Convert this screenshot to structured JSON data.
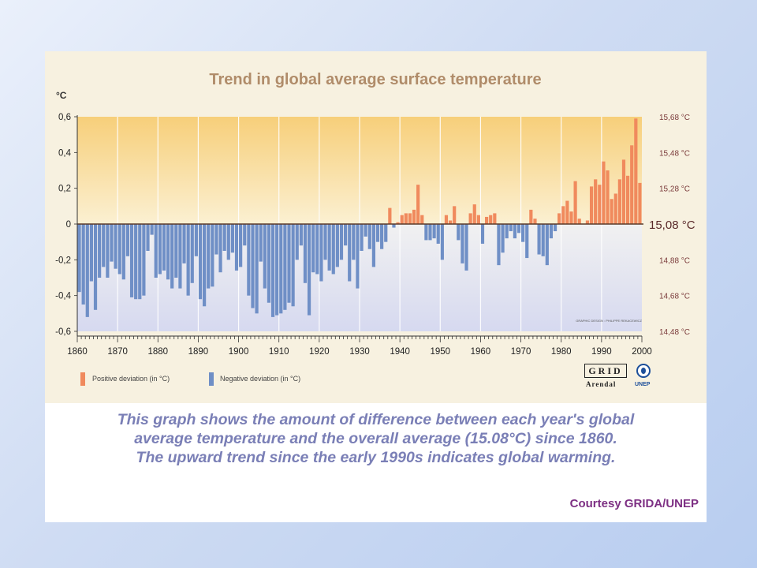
{
  "chart_data": {
    "type": "bar",
    "title": "Trend in global average surface temperature",
    "ylabel": "°C",
    "ylim": [
      -0.6,
      0.6
    ],
    "xlim": [
      1860,
      2000
    ],
    "y_ticks": [
      "0,6",
      "0,4",
      "0,2",
      "0",
      "-0,2",
      "-0,4",
      "-0,6"
    ],
    "y_tick_values": [
      0.6,
      0.4,
      0.2,
      0,
      -0.2,
      -0.4,
      -0.6
    ],
    "right_ticks": [
      "15,68 °C",
      "15,48 °C",
      "15,28 °C",
      "15,08 °C",
      "14,88 °C",
      "14,68 °C",
      "14,48 °C"
    ],
    "x_ticks": [
      "1860",
      "1870",
      "1880",
      "1890",
      "1900",
      "1910",
      "1920",
      "1930",
      "1940",
      "1950",
      "1960",
      "1970",
      "1980",
      "1990",
      "2000"
    ],
    "x_tick_values": [
      1860,
      1870,
      1880,
      1890,
      1900,
      1910,
      1920,
      1930,
      1940,
      1950,
      1960,
      1970,
      1980,
      1990,
      2000
    ],
    "grid": "vertical",
    "credit": "GRAPHIC DESIGN : PHILIPPE REKACEWICZ",
    "series": [
      {
        "name": "Positive deviation (in °C)",
        "color": "#f08a5d",
        "x": [
          1937,
          1939,
          1940,
          1941,
          1942,
          1943,
          1944,
          1945,
          1951,
          1952,
          1953,
          1957,
          1958,
          1959,
          1961,
          1962,
          1963,
          1972,
          1973,
          1979,
          1980,
          1981,
          1982,
          1983,
          1984,
          1986,
          1987,
          1988,
          1989,
          1990,
          1991,
          1992,
          1993,
          1994,
          1995,
          1996,
          1997,
          1998,
          1999
        ],
        "values": [
          0.09,
          0.01,
          0.05,
          0.06,
          0.06,
          0.08,
          0.22,
          0.05,
          0.05,
          0.02,
          0.1,
          0.06,
          0.11,
          0.05,
          0.04,
          0.05,
          0.06,
          0.08,
          0.03,
          0.06,
          0.1,
          0.13,
          0.07,
          0.24,
          0.03,
          0.02,
          0.21,
          0.25,
          0.22,
          0.35,
          0.3,
          0.14,
          0.17,
          0.25,
          0.36,
          0.27,
          0.44,
          0.59,
          0.23
        ]
      },
      {
        "name": "Negative deviation (in °C)",
        "color": "#6f8fc6",
        "x": [
          1860,
          1861,
          1862,
          1863,
          1864,
          1865,
          1866,
          1867,
          1868,
          1869,
          1870,
          1871,
          1872,
          1873,
          1874,
          1875,
          1876,
          1877,
          1878,
          1879,
          1880,
          1881,
          1882,
          1883,
          1884,
          1885,
          1886,
          1887,
          1888,
          1889,
          1890,
          1891,
          1892,
          1893,
          1894,
          1895,
          1896,
          1897,
          1898,
          1899,
          1900,
          1901,
          1902,
          1903,
          1904,
          1905,
          1906,
          1907,
          1908,
          1909,
          1910,
          1911,
          1912,
          1913,
          1914,
          1915,
          1916,
          1917,
          1918,
          1919,
          1920,
          1921,
          1922,
          1923,
          1924,
          1925,
          1926,
          1927,
          1928,
          1929,
          1930,
          1931,
          1932,
          1933,
          1934,
          1935,
          1936,
          1938,
          1946,
          1947,
          1948,
          1949,
          1950,
          1954,
          1955,
          1956,
          1960,
          1964,
          1965,
          1966,
          1967,
          1968,
          1969,
          1970,
          1971,
          1974,
          1975,
          1976,
          1977,
          1978
        ],
        "values": [
          -0.38,
          -0.45,
          -0.52,
          -0.32,
          -0.48,
          -0.3,
          -0.24,
          -0.3,
          -0.21,
          -0.25,
          -0.28,
          -0.31,
          -0.18,
          -0.41,
          -0.42,
          -0.42,
          -0.4,
          -0.15,
          -0.06,
          -0.3,
          -0.28,
          -0.26,
          -0.31,
          -0.36,
          -0.3,
          -0.36,
          -0.22,
          -0.4,
          -0.33,
          -0.18,
          -0.42,
          -0.46,
          -0.36,
          -0.35,
          -0.17,
          -0.27,
          -0.15,
          -0.2,
          -0.16,
          -0.26,
          -0.24,
          -0.12,
          -0.4,
          -0.47,
          -0.5,
          -0.21,
          -0.36,
          -0.44,
          -0.52,
          -0.51,
          -0.5,
          -0.48,
          -0.44,
          -0.46,
          -0.2,
          -0.12,
          -0.33,
          -0.51,
          -0.27,
          -0.28,
          -0.32,
          -0.2,
          -0.26,
          -0.28,
          -0.24,
          -0.2,
          -0.12,
          -0.32,
          -0.2,
          -0.36,
          -0.15,
          -0.07,
          -0.14,
          -0.24,
          -0.1,
          -0.14,
          -0.1,
          -0.02,
          -0.09,
          -0.09,
          -0.08,
          -0.11,
          -0.2,
          -0.09,
          -0.22,
          -0.26,
          -0.11,
          -0.23,
          -0.16,
          -0.08,
          -0.04,
          -0.08,
          -0.05,
          -0.1,
          -0.19,
          -0.17,
          -0.18,
          -0.23,
          -0.08,
          -0.04
        ]
      }
    ],
    "legend": [
      {
        "label": "Positive deviation (in °C)",
        "color": "#f08a5d"
      },
      {
        "label": "Negative deviation (in °C)",
        "color": "#6f8fc6"
      }
    ],
    "legend_position": "bottom-left",
    "baseline_label": "15,08 °C"
  },
  "logos": {
    "grid_text": "GRID",
    "arendal_text": "Arendal",
    "unep_text": "UNEP"
  },
  "caption": {
    "line1": "This graph shows the amount of difference between each year's global",
    "line2": "average temperature and the overall average (15.08°C) since 1860.",
    "line3": "The upward trend since the early 1990s indicates global warming."
  },
  "courtesy": "Courtesy GRIDA/UNEP"
}
